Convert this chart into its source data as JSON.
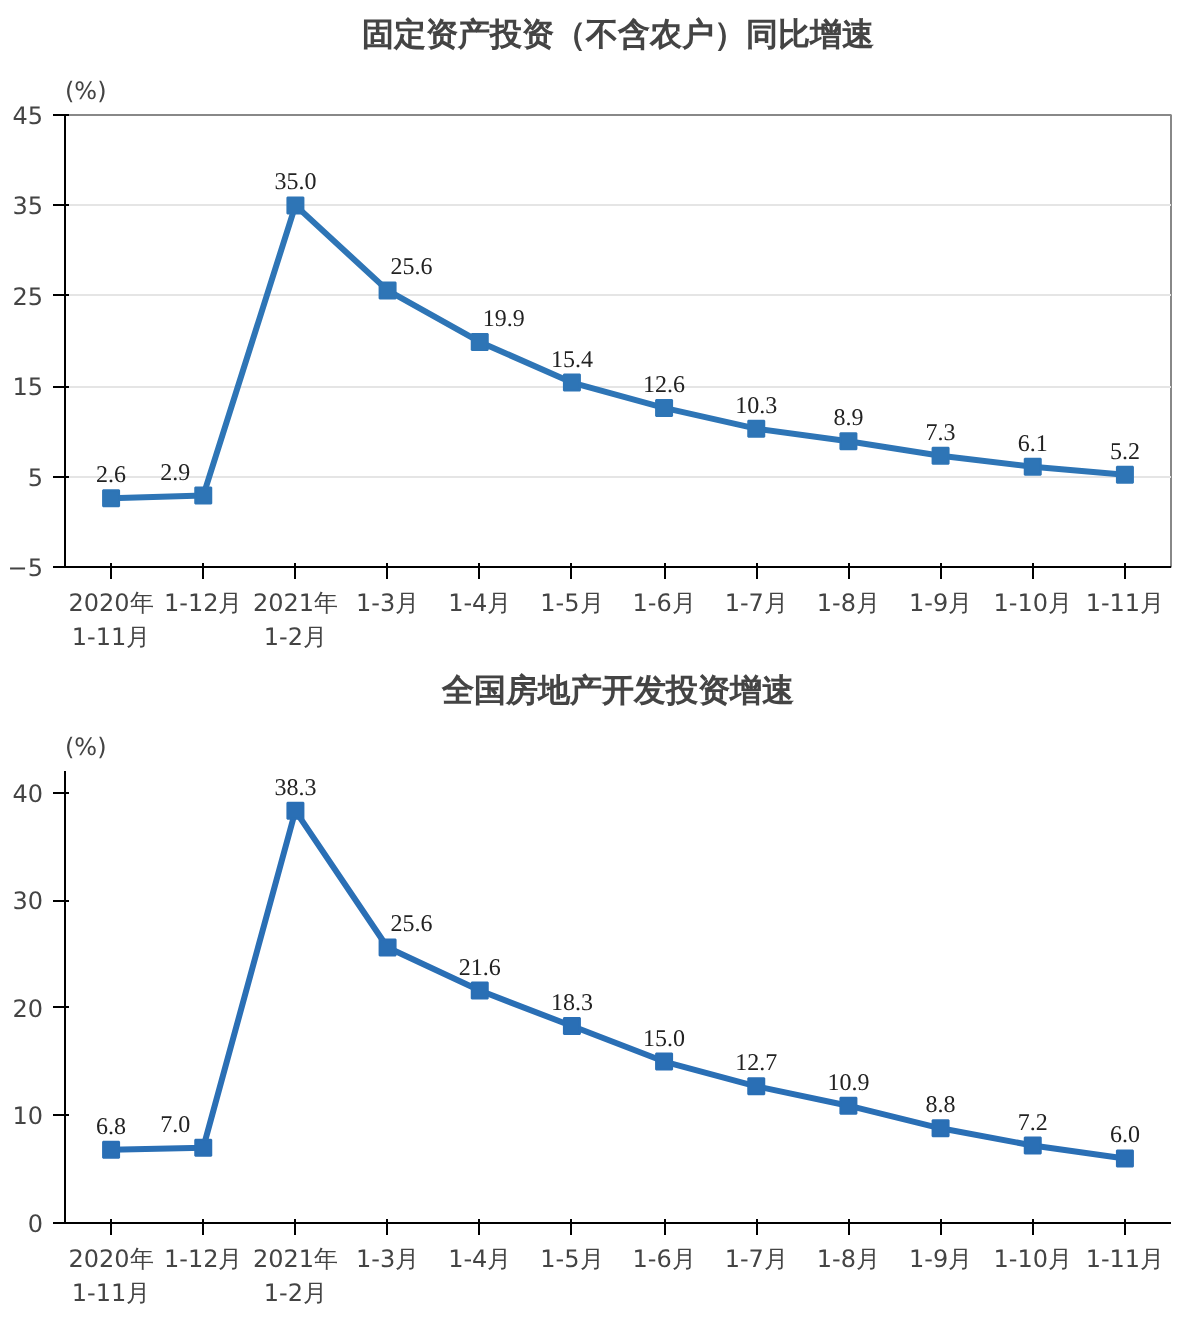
{
  "chart_data": [
    {
      "type": "line",
      "title": "固定资产投资（不含农户）同比增速",
      "ylabel": "(%)",
      "categories": [
        "2020年\n1-11月",
        "1-12月",
        "2021年\n1-2月",
        "1-3月",
        "1-4月",
        "1-5月",
        "1-6月",
        "1-7月",
        "1-8月",
        "1-9月",
        "1-10月",
        "1-11月"
      ],
      "series": [
        {
          "color": "#2e75b6",
          "values": [
            2.6,
            2.9,
            35.0,
            25.6,
            19.9,
            15.4,
            12.6,
            10.3,
            8.9,
            7.3,
            6.1,
            5.2
          ],
          "value_labels": [
            "2.6",
            "2.9",
            "35.0",
            "25.6",
            "19.9",
            "15.4",
            "12.6",
            "10.3",
            "8.9",
            "7.3",
            "6.1",
            "5.2"
          ]
        }
      ],
      "ylim": [
        -5,
        45
      ],
      "yticks": [
        -5,
        5,
        15,
        25,
        35,
        45
      ],
      "grid": "y",
      "marker": "square",
      "line_style": "solid"
    },
    {
      "type": "line",
      "title": "全国房地产开发投资增速",
      "ylabel": "(%)",
      "categories": [
        "2020年\n1-11月",
        "1-12月",
        "2021年\n1-2月",
        "1-3月",
        "1-4月",
        "1-5月",
        "1-6月",
        "1-7月",
        "1-8月",
        "1-9月",
        "1-10月",
        "1-11月"
      ],
      "series": [
        {
          "color": "#2a6fb5",
          "values": [
            6.8,
            7.0,
            38.3,
            25.6,
            21.6,
            18.3,
            15.0,
            12.7,
            10.9,
            8.8,
            7.2,
            6.0
          ],
          "value_labels": [
            "6.8",
            "7.0",
            "38.3",
            "25.6",
            "21.6",
            "18.3",
            "15.0",
            "12.7",
            "10.9",
            "8.8",
            "7.2",
            "6.0"
          ]
        }
      ],
      "ylim": [
        0,
        42
      ],
      "yticks": [
        0,
        10,
        20,
        30,
        40
      ],
      "grid": false,
      "marker": "square",
      "line_style": "solid"
    }
  ]
}
